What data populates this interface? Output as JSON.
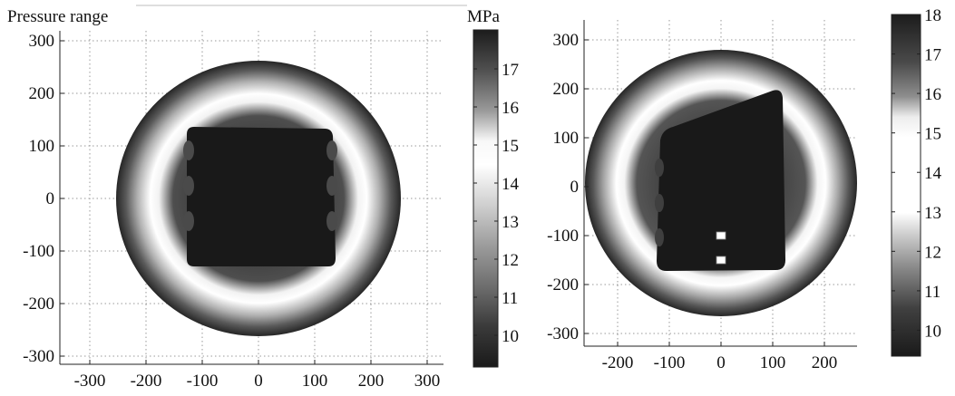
{
  "figure": {
    "top_left_label": "Pressure range",
    "unit_label": "MPa"
  },
  "chart_data": [
    {
      "type": "heatmap",
      "title": "",
      "xlabel": "",
      "ylabel": "",
      "x_ticks": [
        -300,
        -200,
        -100,
        0,
        100,
        200,
        300
      ],
      "y_ticks": [
        300,
        200,
        100,
        0,
        -100,
        -200,
        -300
      ],
      "xlim": [
        -350,
        350
      ],
      "ylim": [
        -320,
        320
      ],
      "grid": true,
      "colorbar": {
        "ticks": [
          17,
          16,
          15,
          14,
          13,
          12,
          11,
          10
        ],
        "range": [
          9,
          18
        ],
        "unit": "MPa"
      },
      "zones": {
        "outer_edge_radius": 258,
        "white_ring_radius": 180,
        "inner_region": {
          "shape": "rounded-square",
          "x_range": [
            -130,
            130
          ],
          "y_range": [
            -120,
            130
          ],
          "pressure": 10
        },
        "ring_pressure": 14.5,
        "edge_pressure": 17.5
      },
      "colormap": "gray"
    },
    {
      "type": "heatmap",
      "title": "",
      "xlabel": "",
      "ylabel": "",
      "x_ticks": [
        -200,
        -100,
        0,
        100,
        200
      ],
      "y_ticks": [
        300,
        200,
        100,
        0,
        -100,
        -200,
        -300
      ],
      "xlim": [
        -260,
        260
      ],
      "ylim": [
        -340,
        340
      ],
      "grid": true,
      "colorbar": {
        "ticks": [
          18,
          17,
          16,
          15,
          14,
          13,
          12,
          11,
          10
        ],
        "range": [
          9,
          18
        ],
        "unit": "MPa"
      },
      "zones": {
        "outer_edge_radius": 272,
        "white_ring_radius": 190,
        "inner_region": {
          "shape": "tilted-rounded-quad",
          "x_range": [
            -125,
            125
          ],
          "y_range": [
            -175,
            195
          ],
          "pressure": 10
        },
        "ring_pressure": 14.5,
        "edge_pressure": 17.5,
        "markers": [
          {
            "x": 0,
            "y": -100
          },
          {
            "x": 0,
            "y": -150
          }
        ]
      },
      "colormap": "gray"
    }
  ]
}
